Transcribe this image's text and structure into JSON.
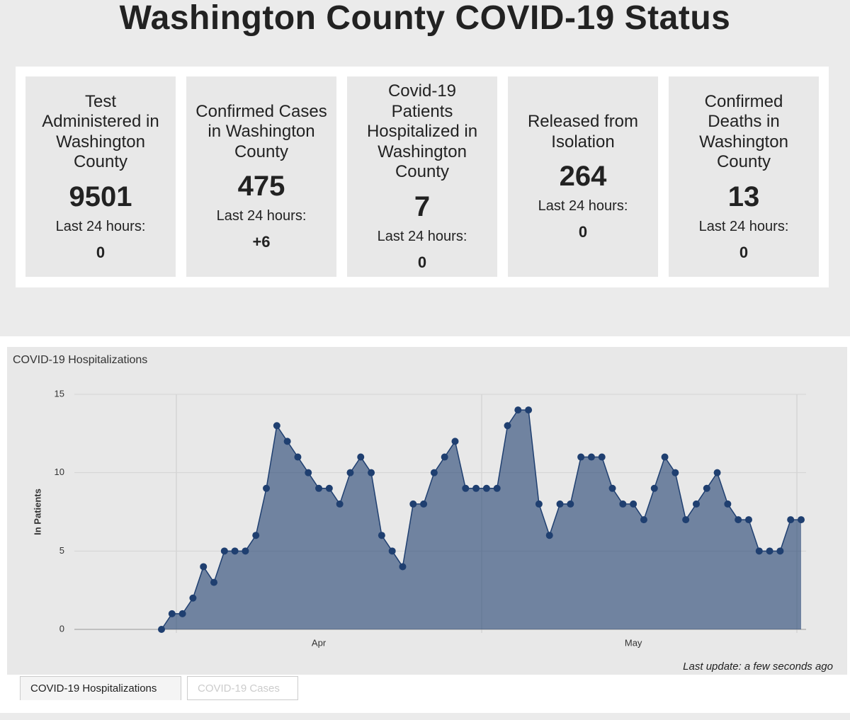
{
  "header": {
    "title": "Washington County COVID-19 Status"
  },
  "cards": [
    {
      "title": "Test Administered in Washington County",
      "value": 9501,
      "change_label": "Last 24 hours:",
      "change": 0
    },
    {
      "title": "Confirmed Cases in Washington County",
      "value": 475,
      "change_label": "Last 24 hours:",
      "change": "+6"
    },
    {
      "title": "Covid-19 Patients Hospitalized in Washington County",
      "value": 7,
      "change_label": "Last 24 hours:",
      "change": 0
    },
    {
      "title": "Released from Isolation",
      "value": 264,
      "change_label": "Last 24 hours:",
      "change": 0
    },
    {
      "title": "Confirmed Deaths in Washington County",
      "value": 13,
      "change_label": "Last 24 hours:",
      "change": 0
    }
  ],
  "chart_data": {
    "type": "area",
    "title": "COVID-19 Hospitalizations",
    "y_label": "In Patients",
    "categories": [
      null,
      null,
      null,
      null,
      null,
      null,
      null,
      null,
      null,
      null,
      null,
      null,
      null,
      null,
      null,
      "Apr",
      null,
      null,
      null,
      null,
      null,
      null,
      null,
      null,
      null,
      null,
      null,
      null,
      null,
      null,
      null,
      null,
      null,
      null,
      null,
      null,
      null,
      null,
      null,
      null,
      null,
      null,
      null,
      null,
      null,
      "May",
      null,
      null,
      null,
      null,
      null,
      null,
      null,
      null,
      null,
      null,
      null,
      null,
      null,
      null,
      null,
      null
    ],
    "values": [
      0,
      1,
      1,
      2,
      4,
      3,
      5,
      5,
      5,
      6,
      9,
      13,
      12,
      11,
      10,
      9,
      9,
      8,
      10,
      11,
      10,
      6,
      5,
      4,
      8,
      8,
      10,
      11,
      12,
      9,
      9,
      9,
      9,
      13,
      14,
      14,
      8,
      6,
      8,
      8,
      11,
      11,
      11,
      9,
      8,
      8,
      7,
      9,
      11,
      10,
      7,
      8,
      9,
      10,
      8,
      7,
      7,
      5,
      5,
      5,
      7,
      7
    ],
    "color": "#1f3f70",
    "ylim": [
      0,
      15
    ],
    "yticks": [
      0,
      5,
      10,
      15
    ],
    "grid": true
  },
  "last_update": "Last update: a few seconds ago",
  "tabs": [
    "COVID-19 Hospitalizations",
    "COVID-19 Cases"
  ]
}
